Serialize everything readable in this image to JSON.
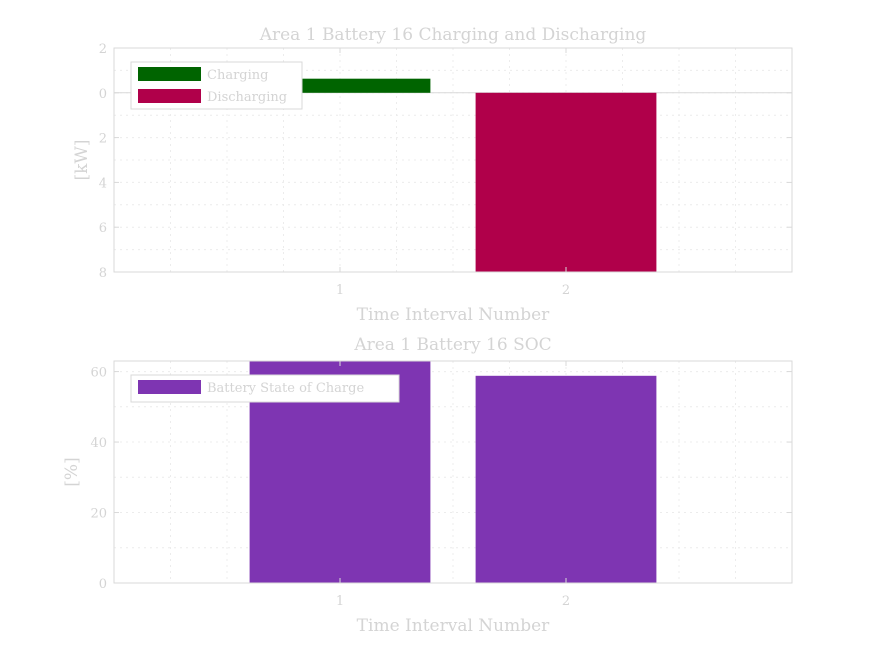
{
  "chart_data": [
    {
      "type": "bar",
      "title": "Area 1 Battery 16 Charging and Discharging",
      "xlabel": "Time Interval Number",
      "ylabel": "[kW]",
      "x_ticks": [
        "1",
        "2"
      ],
      "x_range": [
        0,
        3
      ],
      "y_range": [
        -8,
        2
      ],
      "y_ticks": [
        {
          "value": 2,
          "label": "2"
        },
        {
          "value": 0,
          "label": "0"
        },
        {
          "value": -2,
          "label": "2"
        },
        {
          "value": -4,
          "label": "4"
        },
        {
          "value": -6,
          "label": "6"
        },
        {
          "value": -8,
          "label": "8"
        }
      ],
      "grid": true,
      "legend_position": "top-left",
      "series": [
        {
          "name": "Charging",
          "color": "#006400",
          "x": [
            1,
            2
          ],
          "values": [
            0.63,
            0
          ]
        },
        {
          "name": "Discharging",
          "color": "#b0004a",
          "x": [
            1,
            2
          ],
          "values": [
            0,
            -8
          ]
        }
      ]
    },
    {
      "type": "bar",
      "title": "Area 1 Battery 16 SOC",
      "xlabel": "Time Interval Number",
      "ylabel": "[%]",
      "x_ticks": [
        "1",
        "2"
      ],
      "x_range": [
        0,
        3
      ],
      "y_range": [
        0,
        63
      ],
      "y_ticks": [
        {
          "value": 0,
          "label": "0"
        },
        {
          "value": 20,
          "label": "20"
        },
        {
          "value": 40,
          "label": "40"
        },
        {
          "value": 60,
          "label": "60"
        }
      ],
      "grid": true,
      "legend_position": "top-left",
      "series": [
        {
          "name": "Battery State of Charge",
          "color": "#7e35b2",
          "x": [
            1,
            2
          ],
          "values": [
            63,
            58.8
          ]
        }
      ]
    }
  ]
}
